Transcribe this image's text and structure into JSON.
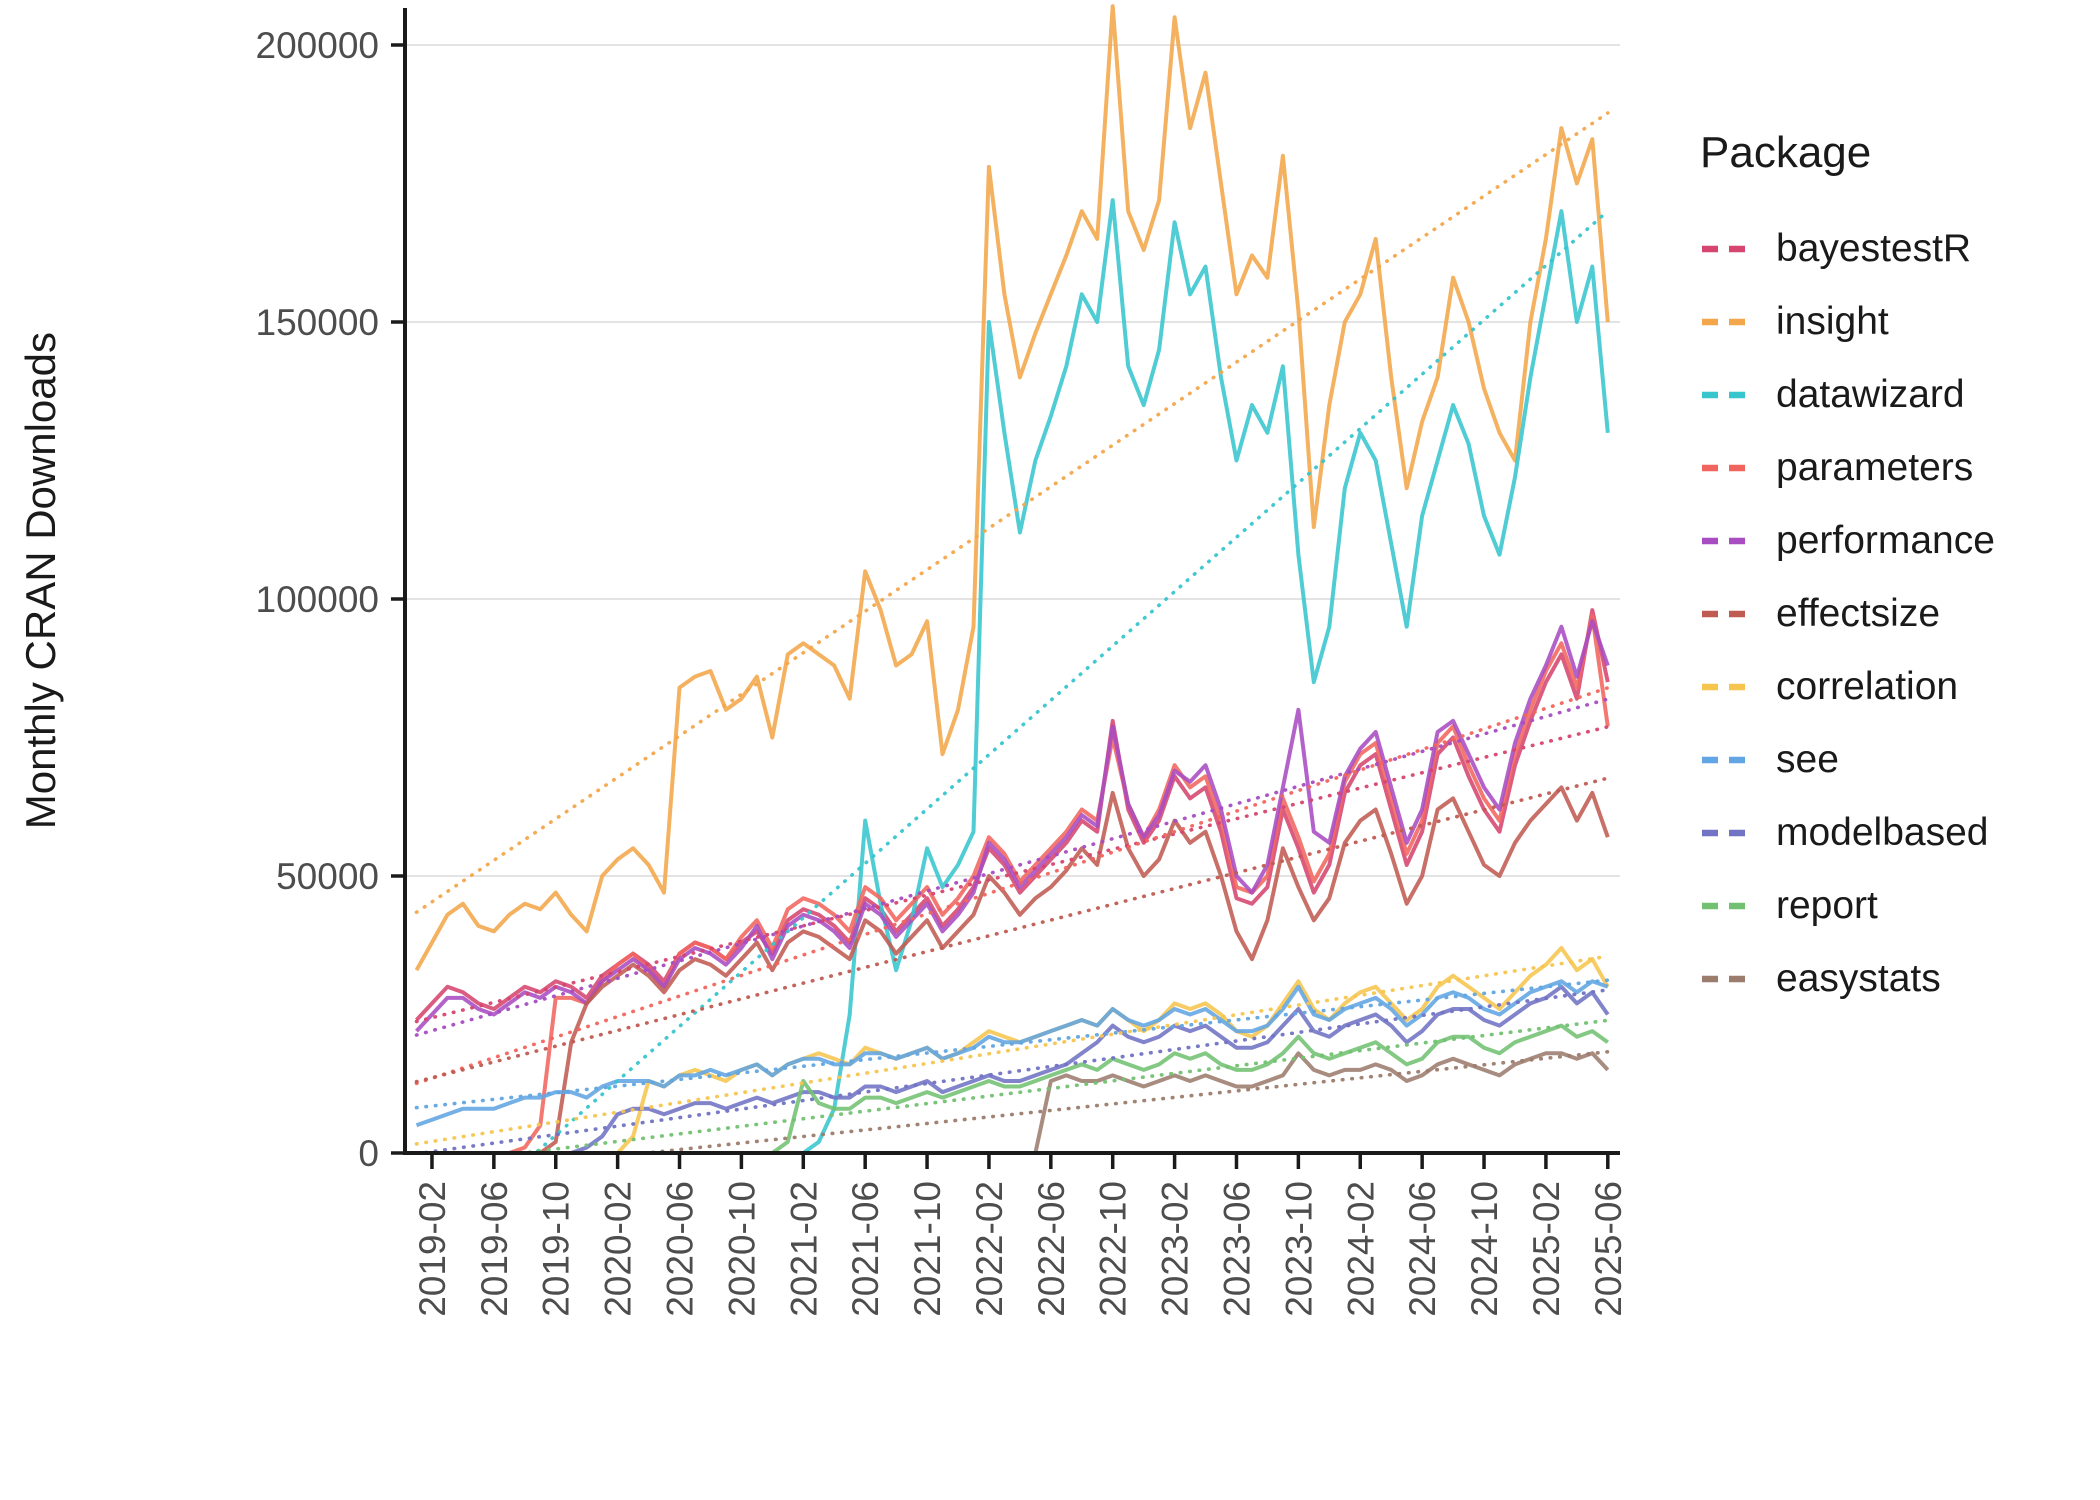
{
  "chart_data": {
    "type": "line",
    "title": "",
    "ylabel": "Monthly CRAN Downloads",
    "xlabel": "",
    "legend_title": "Package",
    "legend_position": "right",
    "grid": "horizontal-major-only",
    "x_start": "2019-01",
    "x_end": "2025-06",
    "x_step": "1 month",
    "x_tick_labels": [
      "2019-02",
      "2019-06",
      "2019-10",
      "2020-02",
      "2020-06",
      "2020-10",
      "2021-02",
      "2021-06",
      "2021-10",
      "2022-02",
      "2022-06",
      "2022-10",
      "2023-02",
      "2023-06",
      "2023-10",
      "2024-02",
      "2024-06",
      "2024-10",
      "2025-02",
      "2025-06"
    ],
    "y_ticks": [
      0,
      50000,
      100000,
      150000,
      200000
    ],
    "ylim": [
      0,
      206000
    ],
    "trend_lines": "linear regression per series, dotted, same color as series",
    "series": [
      {
        "name": "bayestestR",
        "color": "#D6456F",
        "values": [
          24000,
          27000,
          30000,
          29000,
          27000,
          26000,
          28000,
          30000,
          29000,
          31000,
          30000,
          28000,
          32000,
          34000,
          36000,
          34000,
          31000,
          36000,
          38000,
          37000,
          35000,
          38000,
          40000,
          36000,
          42000,
          44000,
          43000,
          41000,
          38000,
          46000,
          44000,
          40000,
          43000,
          46000,
          41000,
          44000,
          48000,
          55000,
          52000,
          47000,
          50000,
          53000,
          56000,
          60000,
          58000,
          78000,
          62000,
          56000,
          60000,
          68000,
          64000,
          66000,
          58000,
          46000,
          45000,
          48000,
          62000,
          55000,
          47000,
          52000,
          65000,
          70000,
          72000,
          62000,
          52000,
          58000,
          72000,
          75000,
          68000,
          62000,
          58000,
          70000,
          78000,
          85000,
          90000,
          82000,
          98000,
          85000
        ]
      },
      {
        "name": "insight",
        "color": "#F3A64A",
        "values": [
          33000,
          38000,
          43000,
          45000,
          41000,
          40000,
          43000,
          45000,
          44000,
          47000,
          43000,
          40000,
          50000,
          53000,
          55000,
          52000,
          47000,
          84000,
          86000,
          87000,
          80000,
          82000,
          86000,
          75000,
          90000,
          92000,
          90000,
          88000,
          82000,
          105000,
          98000,
          88000,
          90000,
          96000,
          72000,
          80000,
          95000,
          178000,
          155000,
          140000,
          148000,
          155000,
          162000,
          170000,
          165000,
          207000,
          170000,
          163000,
          172000,
          205000,
          185000,
          195000,
          175000,
          155000,
          162000,
          158000,
          180000,
          152000,
          113000,
          135000,
          150000,
          155000,
          165000,
          140000,
          120000,
          132000,
          140000,
          158000,
          150000,
          138000,
          130000,
          125000,
          150000,
          165000,
          185000,
          175000,
          183000,
          150000
        ]
      },
      {
        "name": "datawizard",
        "color": "#37C5CE",
        "values": [
          0,
          0,
          0,
          0,
          0,
          0,
          0,
          0,
          0,
          0,
          0,
          0,
          0,
          0,
          0,
          0,
          0,
          0,
          0,
          0,
          0,
          0,
          0,
          0,
          0,
          0,
          2000,
          8000,
          25000,
          60000,
          45000,
          33000,
          42000,
          55000,
          48000,
          52000,
          58000,
          150000,
          130000,
          112000,
          125000,
          133000,
          142000,
          155000,
          150000,
          172000,
          142000,
          135000,
          145000,
          168000,
          155000,
          160000,
          140000,
          125000,
          135000,
          130000,
          142000,
          108000,
          85000,
          95000,
          120000,
          130000,
          125000,
          110000,
          95000,
          115000,
          125000,
          135000,
          128000,
          115000,
          108000,
          122000,
          140000,
          155000,
          170000,
          150000,
          160000,
          130000
        ]
      },
      {
        "name": "parameters",
        "color": "#F2655E",
        "values": [
          0,
          0,
          0,
          0,
          0,
          0,
          0,
          1000,
          5000,
          28000,
          28000,
          27000,
          31000,
          34000,
          36000,
          33000,
          30000,
          36000,
          38000,
          37000,
          35000,
          39000,
          42000,
          37000,
          44000,
          46000,
          45000,
          43000,
          40000,
          48000,
          46000,
          42000,
          45000,
          48000,
          43000,
          46000,
          50000,
          57000,
          54000,
          49000,
          52000,
          55000,
          58000,
          62000,
          60000,
          75000,
          63000,
          57000,
          62000,
          70000,
          66000,
          68000,
          60000,
          48000,
          47000,
          50000,
          64000,
          57000,
          49000,
          54000,
          67000,
          72000,
          74000,
          64000,
          54000,
          60000,
          74000,
          77000,
          70000,
          64000,
          60000,
          72000,
          80000,
          87000,
          92000,
          84000,
          97000,
          77000
        ]
      },
      {
        "name": "performance",
        "color": "#A84CC2",
        "values": [
          22000,
          25000,
          28000,
          28000,
          26000,
          25000,
          27000,
          29000,
          28000,
          30000,
          29000,
          27000,
          31000,
          33000,
          35000,
          33000,
          30000,
          35000,
          37000,
          36000,
          34000,
          37000,
          41000,
          35000,
          41000,
          43000,
          42000,
          40000,
          37000,
          45000,
          43000,
          39000,
          42000,
          45000,
          40000,
          43000,
          47000,
          56000,
          53000,
          48000,
          51000,
          54000,
          57000,
          61000,
          59000,
          77000,
          63000,
          57000,
          61000,
          69000,
          67000,
          70000,
          62000,
          50000,
          47000,
          52000,
          66000,
          80000,
          58000,
          56000,
          68000,
          73000,
          76000,
          66000,
          56000,
          62000,
          76000,
          78000,
          72000,
          66000,
          62000,
          74000,
          82000,
          88000,
          95000,
          86000,
          96000,
          88000
        ]
      },
      {
        "name": "effectsize",
        "color": "#C05B52",
        "values": [
          0,
          0,
          0,
          0,
          0,
          0,
          0,
          0,
          0,
          2000,
          20000,
          27000,
          30000,
          32000,
          34000,
          32000,
          29000,
          33000,
          35000,
          34000,
          32000,
          35000,
          38000,
          33000,
          38000,
          40000,
          39000,
          37000,
          35000,
          42000,
          40000,
          36000,
          39000,
          42000,
          37000,
          40000,
          43000,
          50000,
          47000,
          43000,
          46000,
          48000,
          51000,
          55000,
          52000,
          65000,
          55000,
          50000,
          53000,
          60000,
          56000,
          58000,
          50000,
          40000,
          35000,
          42000,
          55000,
          48000,
          42000,
          46000,
          56000,
          60000,
          62000,
          54000,
          45000,
          50000,
          62000,
          64000,
          58000,
          52000,
          50000,
          56000,
          60000,
          63000,
          66000,
          60000,
          65000,
          57000
        ]
      },
      {
        "name": "correlation",
        "color": "#F6C54E",
        "values": [
          0,
          0,
          0,
          0,
          0,
          0,
          0,
          0,
          0,
          0,
          0,
          0,
          0,
          0,
          3000,
          13000,
          12000,
          14000,
          15000,
          14000,
          13000,
          15000,
          16000,
          14000,
          16000,
          17000,
          18000,
          17000,
          16000,
          19000,
          18000,
          17000,
          18000,
          19000,
          17000,
          18000,
          20000,
          22000,
          21000,
          20000,
          21000,
          22000,
          23000,
          24000,
          23000,
          26000,
          24000,
          22000,
          24000,
          27000,
          26000,
          27000,
          25000,
          22000,
          21000,
          23000,
          27000,
          31000,
          26000,
          24000,
          27000,
          29000,
          30000,
          27000,
          24000,
          26000,
          30000,
          32000,
          30000,
          28000,
          26000,
          29000,
          32000,
          34000,
          37000,
          33000,
          35000,
          30000
        ]
      },
      {
        "name": "see",
        "color": "#61A5E2",
        "values": [
          5000,
          6000,
          7000,
          8000,
          8000,
          8000,
          9000,
          10000,
          10000,
          11000,
          11000,
          10000,
          12000,
          13000,
          13000,
          13000,
          12000,
          14000,
          14000,
          15000,
          14000,
          15000,
          16000,
          14000,
          16000,
          17000,
          17000,
          16000,
          16000,
          18000,
          18000,
          17000,
          18000,
          19000,
          17000,
          18000,
          19000,
          21000,
          20000,
          20000,
          21000,
          22000,
          23000,
          24000,
          23000,
          26000,
          24000,
          23000,
          24000,
          26000,
          25000,
          26000,
          24000,
          22000,
          22000,
          23000,
          26000,
          30000,
          25000,
          24000,
          26000,
          27000,
          28000,
          26000,
          23000,
          25000,
          28000,
          29000,
          28000,
          26000,
          25000,
          27000,
          29000,
          30000,
          31000,
          29000,
          31000,
          30000
        ]
      },
      {
        "name": "modelbased",
        "color": "#7173C4",
        "values": [
          0,
          0,
          0,
          0,
          0,
          0,
          0,
          0,
          0,
          0,
          0,
          1000,
          3000,
          7000,
          8000,
          8000,
          7000,
          8000,
          9000,
          9000,
          8000,
          9000,
          10000,
          9000,
          10000,
          11000,
          11000,
          10000,
          10000,
          12000,
          12000,
          11000,
          12000,
          13000,
          11000,
          12000,
          13000,
          14000,
          13000,
          13000,
          14000,
          15000,
          16000,
          18000,
          20000,
          23000,
          21000,
          20000,
          21000,
          23000,
          22000,
          23000,
          21000,
          19000,
          19000,
          20000,
          23000,
          26000,
          22000,
          21000,
          23000,
          24000,
          25000,
          23000,
          20000,
          22000,
          25000,
          26000,
          26000,
          24000,
          23000,
          25000,
          27000,
          28000,
          30000,
          27000,
          29000,
          25000
        ]
      },
      {
        "name": "report",
        "color": "#72C172",
        "values": [
          0,
          0,
          0,
          0,
          0,
          0,
          0,
          0,
          0,
          0,
          0,
          0,
          0,
          0,
          0,
          0,
          0,
          0,
          0,
          0,
          0,
          0,
          0,
          0,
          2000,
          13000,
          9000,
          8000,
          8000,
          10000,
          10000,
          9000,
          10000,
          11000,
          10000,
          11000,
          12000,
          13000,
          12000,
          12000,
          13000,
          14000,
          15000,
          16000,
          15000,
          17000,
          16000,
          15000,
          16000,
          18000,
          17000,
          18000,
          16000,
          15000,
          15000,
          16000,
          18000,
          21000,
          18000,
          17000,
          18000,
          19000,
          20000,
          18000,
          16000,
          17000,
          20000,
          21000,
          21000,
          19000,
          18000,
          20000,
          21000,
          22000,
          23000,
          21000,
          22000,
          20000
        ]
      },
      {
        "name": "easystats",
        "color": "#9C7C6D",
        "values": [
          0,
          0,
          0,
          0,
          0,
          0,
          0,
          0,
          0,
          0,
          0,
          0,
          0,
          0,
          0,
          0,
          0,
          0,
          0,
          0,
          0,
          0,
          0,
          0,
          0,
          0,
          0,
          0,
          0,
          0,
          0,
          0,
          0,
          0,
          0,
          0,
          0,
          0,
          0,
          0,
          0,
          13000,
          14000,
          13000,
          13000,
          14000,
          13000,
          12000,
          13000,
          14000,
          13000,
          14000,
          13000,
          12000,
          12000,
          13000,
          14000,
          18000,
          15000,
          14000,
          15000,
          15000,
          16000,
          15000,
          13000,
          14000,
          16000,
          17000,
          16000,
          15000,
          14000,
          16000,
          17000,
          18000,
          18000,
          17000,
          18000,
          15000
        ]
      }
    ]
  }
}
